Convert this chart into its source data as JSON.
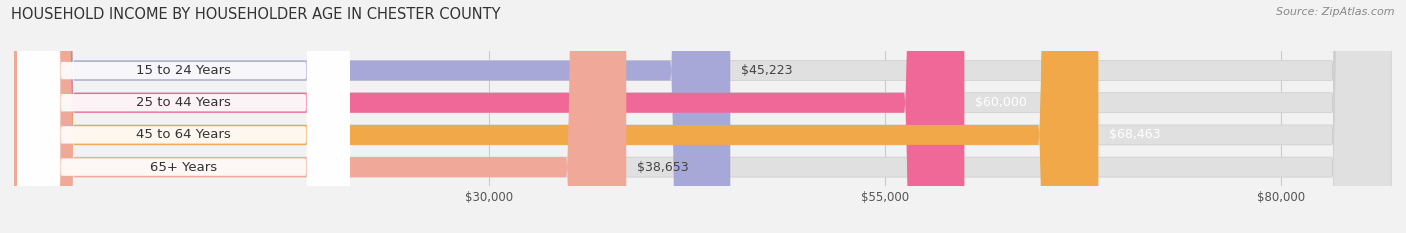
{
  "title": "HOUSEHOLD INCOME BY HOUSEHOLDER AGE IN CHESTER COUNTY",
  "source": "Source: ZipAtlas.com",
  "categories": [
    "15 to 24 Years",
    "25 to 44 Years",
    "45 to 64 Years",
    "65+ Years"
  ],
  "values": [
    45223,
    60000,
    68463,
    38653
  ],
  "bar_colors": [
    "#a8a8d8",
    "#f06898",
    "#f0a848",
    "#f0a898"
  ],
  "label_colors": [
    "#444444",
    "#ffffff",
    "#ffffff",
    "#444444"
  ],
  "label_values": [
    "$45,223",
    "$60,000",
    "$68,463",
    "$38,653"
  ],
  "x_ticks": [
    30000,
    55000,
    80000
  ],
  "x_tick_labels": [
    "$30,000",
    "$55,000",
    "$80,000"
  ],
  "xlim": [
    0,
    87000
  ],
  "bar_height": 0.62,
  "bg_color": "#f2f2f2",
  "bar_bg_color": "#e0e0e0",
  "title_fontsize": 10.5,
  "source_fontsize": 8,
  "label_fontsize": 9,
  "cat_fontsize": 9.5,
  "tick_fontsize": 8.5
}
